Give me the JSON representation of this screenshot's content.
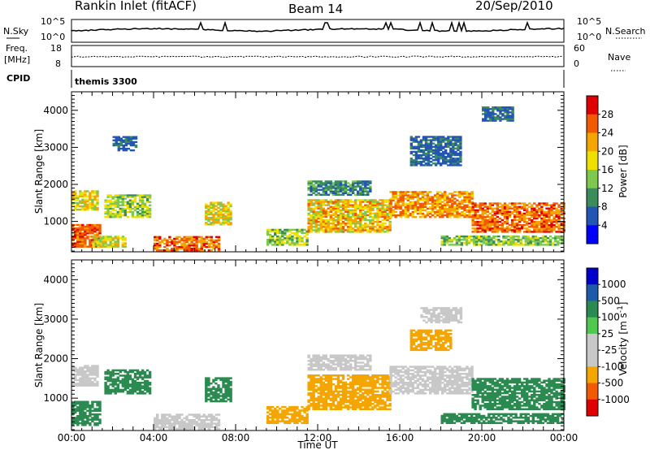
{
  "header": {
    "station": "Rankin Inlet (fitACF)",
    "beam": "Beam 14",
    "date": "20/Sep/2010"
  },
  "top_panels": {
    "nsky_label": "N.Sky",
    "nsky_ticks": [
      "10^5",
      "10^0"
    ],
    "nsearch_label": "N.Search",
    "nsearch_ticks": [
      "10^5",
      "10^0"
    ],
    "freq_label": "Freq.",
    "freq_unit": "[MHz]",
    "freq_ticks": [
      "18",
      "8"
    ],
    "nave_label": "Nave",
    "nave_ticks": [
      "60",
      "0"
    ],
    "cpid_label": "CPID",
    "cpid_value": "themis 3300"
  },
  "colors": {
    "power_scale": [
      "#0000ff",
      "#2255b4",
      "#3a8c5a",
      "#7ec850",
      "#f0e000",
      "#f5a500",
      "#f05a00",
      "#e00000"
    ],
    "velocity_scale": [
      "#e00000",
      "#f05a00",
      "#f5a500",
      "#c8c8c8",
      "#c8c8c8",
      "#50c850",
      "#2a8a50",
      "#1e5aaa",
      "#0000cc"
    ]
  },
  "chart_data": [
    {
      "type": "heatmap",
      "panel": "power",
      "ylabel": "Slant Range [km]",
      "xlabel": "Time UT",
      "x_ticks": [
        "00:00",
        "04:00",
        "08:00",
        "12:00",
        "16:00",
        "20:00",
        "00:00"
      ],
      "x_range_hours": [
        0,
        24
      ],
      "ylim": [
        180,
        4500
      ],
      "y_ticks": [
        1000,
        2000,
        3000,
        4000
      ],
      "colorbar": {
        "label": "Power [dB]",
        "ticks": [
          4,
          8,
          12,
          16,
          20,
          24,
          28
        ],
        "range": [
          0,
          32
        ]
      },
      "regions": [
        {
          "t": [
            0.0,
            1.4
          ],
          "r": [
            300,
            900
          ],
          "v": [
            22,
            30
          ]
        },
        {
          "t": [
            0.0,
            1.3
          ],
          "r": [
            1300,
            1800
          ],
          "v": [
            14,
            24
          ]
        },
        {
          "t": [
            1.6,
            3.8
          ],
          "r": [
            1100,
            1700
          ],
          "v": [
            10,
            20
          ]
        },
        {
          "t": [
            1.0,
            2.6
          ],
          "r": [
            300,
            600
          ],
          "v": [
            12,
            22
          ]
        },
        {
          "t": [
            4.0,
            7.2
          ],
          "r": [
            200,
            600
          ],
          "v": [
            20,
            30
          ]
        },
        {
          "t": [
            6.5,
            7.8
          ],
          "r": [
            900,
            1500
          ],
          "v": [
            12,
            24
          ]
        },
        {
          "t": [
            9.5,
            11.5
          ],
          "r": [
            350,
            800
          ],
          "v": [
            10,
            20
          ]
        },
        {
          "t": [
            11.5,
            15.5
          ],
          "r": [
            700,
            1600
          ],
          "v": [
            14,
            26
          ]
        },
        {
          "t": [
            11.5,
            14.5
          ],
          "r": [
            1700,
            2100
          ],
          "v": [
            6,
            14
          ]
        },
        {
          "t": [
            15.5,
            19.5
          ],
          "r": [
            1100,
            1800
          ],
          "v": [
            18,
            28
          ]
        },
        {
          "t": [
            19.5,
            24.0
          ],
          "r": [
            700,
            1500
          ],
          "v": [
            20,
            30
          ]
        },
        {
          "t": [
            18.0,
            24.0
          ],
          "r": [
            350,
            600
          ],
          "v": [
            10,
            18
          ]
        },
        {
          "t": [
            2.0,
            3.2
          ],
          "r": [
            2900,
            3300
          ],
          "v": [
            4,
            10
          ]
        },
        {
          "t": [
            16.5,
            19.0
          ],
          "r": [
            2500,
            3300
          ],
          "v": [
            4,
            10
          ]
        },
        {
          "t": [
            20.0,
            21.5
          ],
          "r": [
            3700,
            4100
          ],
          "v": [
            4,
            10
          ]
        }
      ]
    },
    {
      "type": "heatmap",
      "panel": "velocity",
      "ylabel": "Slant Range [km]",
      "xlabel": "Time UT",
      "x_ticks": [
        "00:00",
        "04:00",
        "08:00",
        "12:00",
        "16:00",
        "20:00",
        "00:00"
      ],
      "x_range_hours": [
        0,
        24
      ],
      "ylim": [
        180,
        4500
      ],
      "y_ticks": [
        1000,
        2000,
        3000,
        4000
      ],
      "colorbar": {
        "label": "Velocity [m s",
        "label_sup": "-1",
        "label_end": "]",
        "ticks": [
          1000,
          500,
          100,
          25,
          -25,
          -100,
          -500,
          -1000
        ]
      },
      "regions": [
        {
          "t": [
            0.0,
            1.4
          ],
          "r": [
            300,
            900
          ],
          "v": [
            100,
            500
          ]
        },
        {
          "t": [
            0.0,
            1.3
          ],
          "r": [
            1300,
            1800
          ],
          "v": [
            -25,
            25
          ]
        },
        {
          "t": [
            1.6,
            3.8
          ],
          "r": [
            1100,
            1700
          ],
          "v": [
            100,
            300
          ]
        },
        {
          "t": [
            4.0,
            7.2
          ],
          "r": [
            200,
            600
          ],
          "v": [
            -25,
            25
          ]
        },
        {
          "t": [
            6.5,
            7.8
          ],
          "r": [
            900,
            1500
          ],
          "v": [
            100,
            500
          ]
        },
        {
          "t": [
            9.5,
            11.5
          ],
          "r": [
            350,
            800
          ],
          "v": [
            -300,
            -100
          ]
        },
        {
          "t": [
            11.5,
            15.5
          ],
          "r": [
            700,
            1600
          ],
          "v": [
            -500,
            -100
          ]
        },
        {
          "t": [
            11.5,
            14.5
          ],
          "r": [
            1700,
            2100
          ],
          "v": [
            -25,
            25
          ]
        },
        {
          "t": [
            15.5,
            19.5
          ],
          "r": [
            1100,
            1800
          ],
          "v": [
            -25,
            25
          ]
        },
        {
          "t": [
            19.5,
            24.0
          ],
          "r": [
            700,
            1500
          ],
          "v": [
            100,
            500
          ]
        },
        {
          "t": [
            18.0,
            24.0
          ],
          "r": [
            350,
            600
          ],
          "v": [
            100,
            300
          ]
        },
        {
          "t": [
            16.5,
            18.5
          ],
          "r": [
            2200,
            2700
          ],
          "v": [
            -500,
            -200
          ]
        },
        {
          "t": [
            17.0,
            19.0
          ],
          "r": [
            2900,
            3300
          ],
          "v": [
            -25,
            25
          ]
        }
      ]
    }
  ]
}
